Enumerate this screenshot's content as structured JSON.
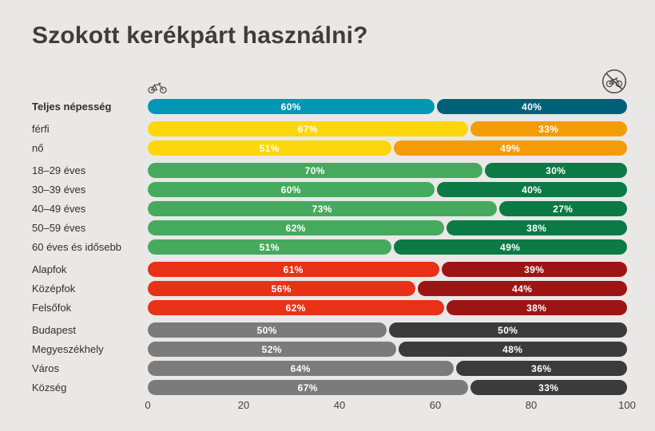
{
  "chart_data": {
    "type": "bar",
    "orientation": "horizontal",
    "stacked": true,
    "title": "Szokott kerékpárt használni?",
    "unit": "%",
    "x_axis": {
      "min": 0,
      "max": 100,
      "ticks": [
        0,
        20,
        40,
        60,
        80,
        100
      ]
    },
    "legend": {
      "left_icon": "bicycle-icon",
      "right_icon": "no-bicycle-icon"
    },
    "colors": {
      "background": "#e9e8e6",
      "title": "#3d3d3d",
      "bar_text": "#ffffff"
    },
    "groups": [
      {
        "name": "total",
        "color_yes": "#0098b5",
        "color_no": "#00607a",
        "rows": [
          {
            "label": "Teljes népesség",
            "bold": true,
            "yes": 60,
            "no": 40
          }
        ]
      },
      {
        "name": "gender",
        "color_yes": "#fdd60b",
        "color_no": "#f49c08",
        "rows": [
          {
            "label": "férfi",
            "yes": 67,
            "no": 33
          },
          {
            "label": "nő",
            "yes": 51,
            "no": 49
          }
        ]
      },
      {
        "name": "age",
        "color_yes": "#46aa5e",
        "color_no": "#0c7a45",
        "rows": [
          {
            "label": "18–29 éves",
            "yes": 70,
            "no": 30
          },
          {
            "label": "30–39 éves",
            "yes": 60,
            "no": 40
          },
          {
            "label": "40–49 éves",
            "yes": 73,
            "no": 27
          },
          {
            "label": "50–59 éves",
            "yes": 62,
            "no": 38
          },
          {
            "label": "60 éves és idősebb",
            "yes": 51,
            "no": 49
          }
        ]
      },
      {
        "name": "education",
        "color_yes": "#e73218",
        "color_no": "#9c1514",
        "rows": [
          {
            "label": "Alapfok",
            "yes": 61,
            "no": 39
          },
          {
            "label": "Középfok",
            "yes": 56,
            "no": 44
          },
          {
            "label": "Felsőfok",
            "yes": 62,
            "no": 38
          }
        ]
      },
      {
        "name": "settlement",
        "color_yes": "#7b7b7b",
        "color_no": "#3b3b3b",
        "rows": [
          {
            "label": "Budapest",
            "yes": 50,
            "no": 50
          },
          {
            "label": "Megyeszékhely",
            "yes": 52,
            "no": 48
          },
          {
            "label": "Város",
            "yes": 64,
            "no": 36
          },
          {
            "label": "Község",
            "yes": 67,
            "no": 33
          }
        ]
      }
    ]
  }
}
